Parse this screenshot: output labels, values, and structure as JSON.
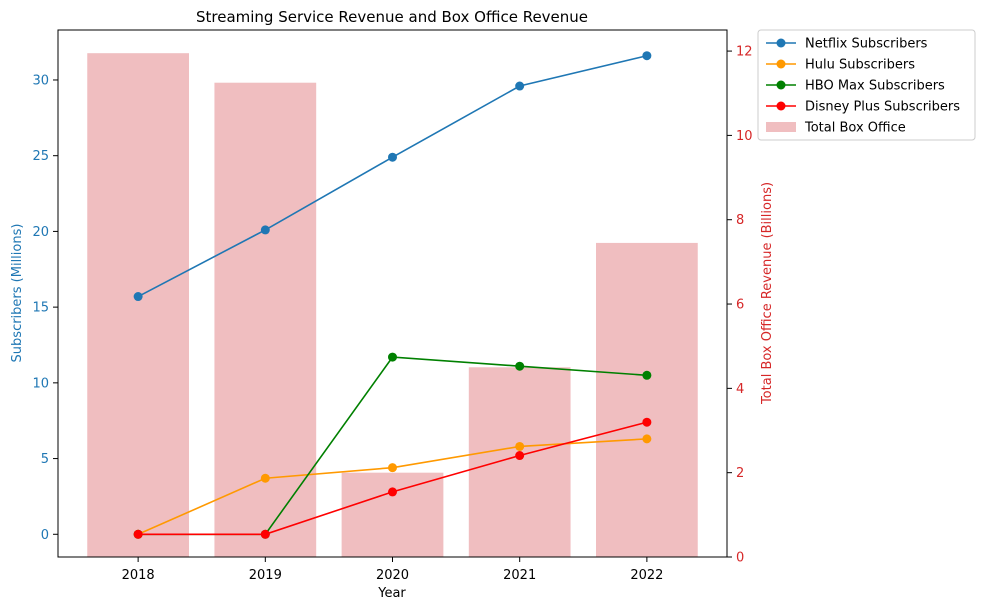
{
  "chart_data": {
    "type": "bar+line",
    "title": "Streaming Service Revenue and Box Office Revenue",
    "xlabel": "Year",
    "ylabel_left": "Subscribers (Millions)",
    "ylabel_right": "Total Box Office Revenue (Billions)",
    "categories": [
      "2018",
      "2019",
      "2020",
      "2021",
      "2022"
    ],
    "left_axis": {
      "min": -1.5,
      "max": 33.3,
      "ticks": [
        0,
        5,
        10,
        15,
        20,
        25,
        30
      ],
      "color": "#1f77b4"
    },
    "right_axis": {
      "min": 0,
      "max": 12.5,
      "ticks": [
        0,
        2,
        4,
        6,
        8,
        10,
        12
      ],
      "color": "#d62728"
    },
    "bars": {
      "name": "Total Box Office",
      "color": "#f0bec0",
      "values": [
        11.95,
        11.25,
        2.0,
        4.5,
        7.45
      ]
    },
    "series": [
      {
        "name": "Netflix Subscribers",
        "color": "#1f77b4",
        "values": [
          15.7,
          20.1,
          24.9,
          29.6,
          31.6
        ]
      },
      {
        "name": "Hulu Subscribers",
        "color": "#ff9900",
        "values": [
          0.0,
          3.7,
          4.4,
          5.8,
          6.3
        ]
      },
      {
        "name": "HBO Max Subscribers",
        "color": "#008000",
        "values": [
          0.0,
          0.0,
          11.7,
          11.1,
          10.5
        ]
      },
      {
        "name": "Disney Plus Subscribers",
        "color": "#ff0000",
        "values": [
          0.0,
          0.0,
          2.8,
          5.2,
          7.4
        ]
      }
    ],
    "legend_placement": "outside-top-right",
    "grid": false
  }
}
